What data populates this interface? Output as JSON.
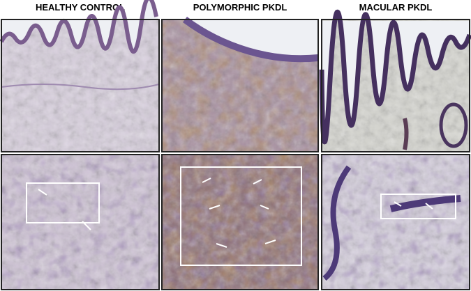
{
  "columns": [
    {
      "title": "HEALTHY CONTROL"
    },
    {
      "title": "POLYMORPHIC PKDL"
    },
    {
      "title": "MACULAR PKDL"
    }
  ]
}
